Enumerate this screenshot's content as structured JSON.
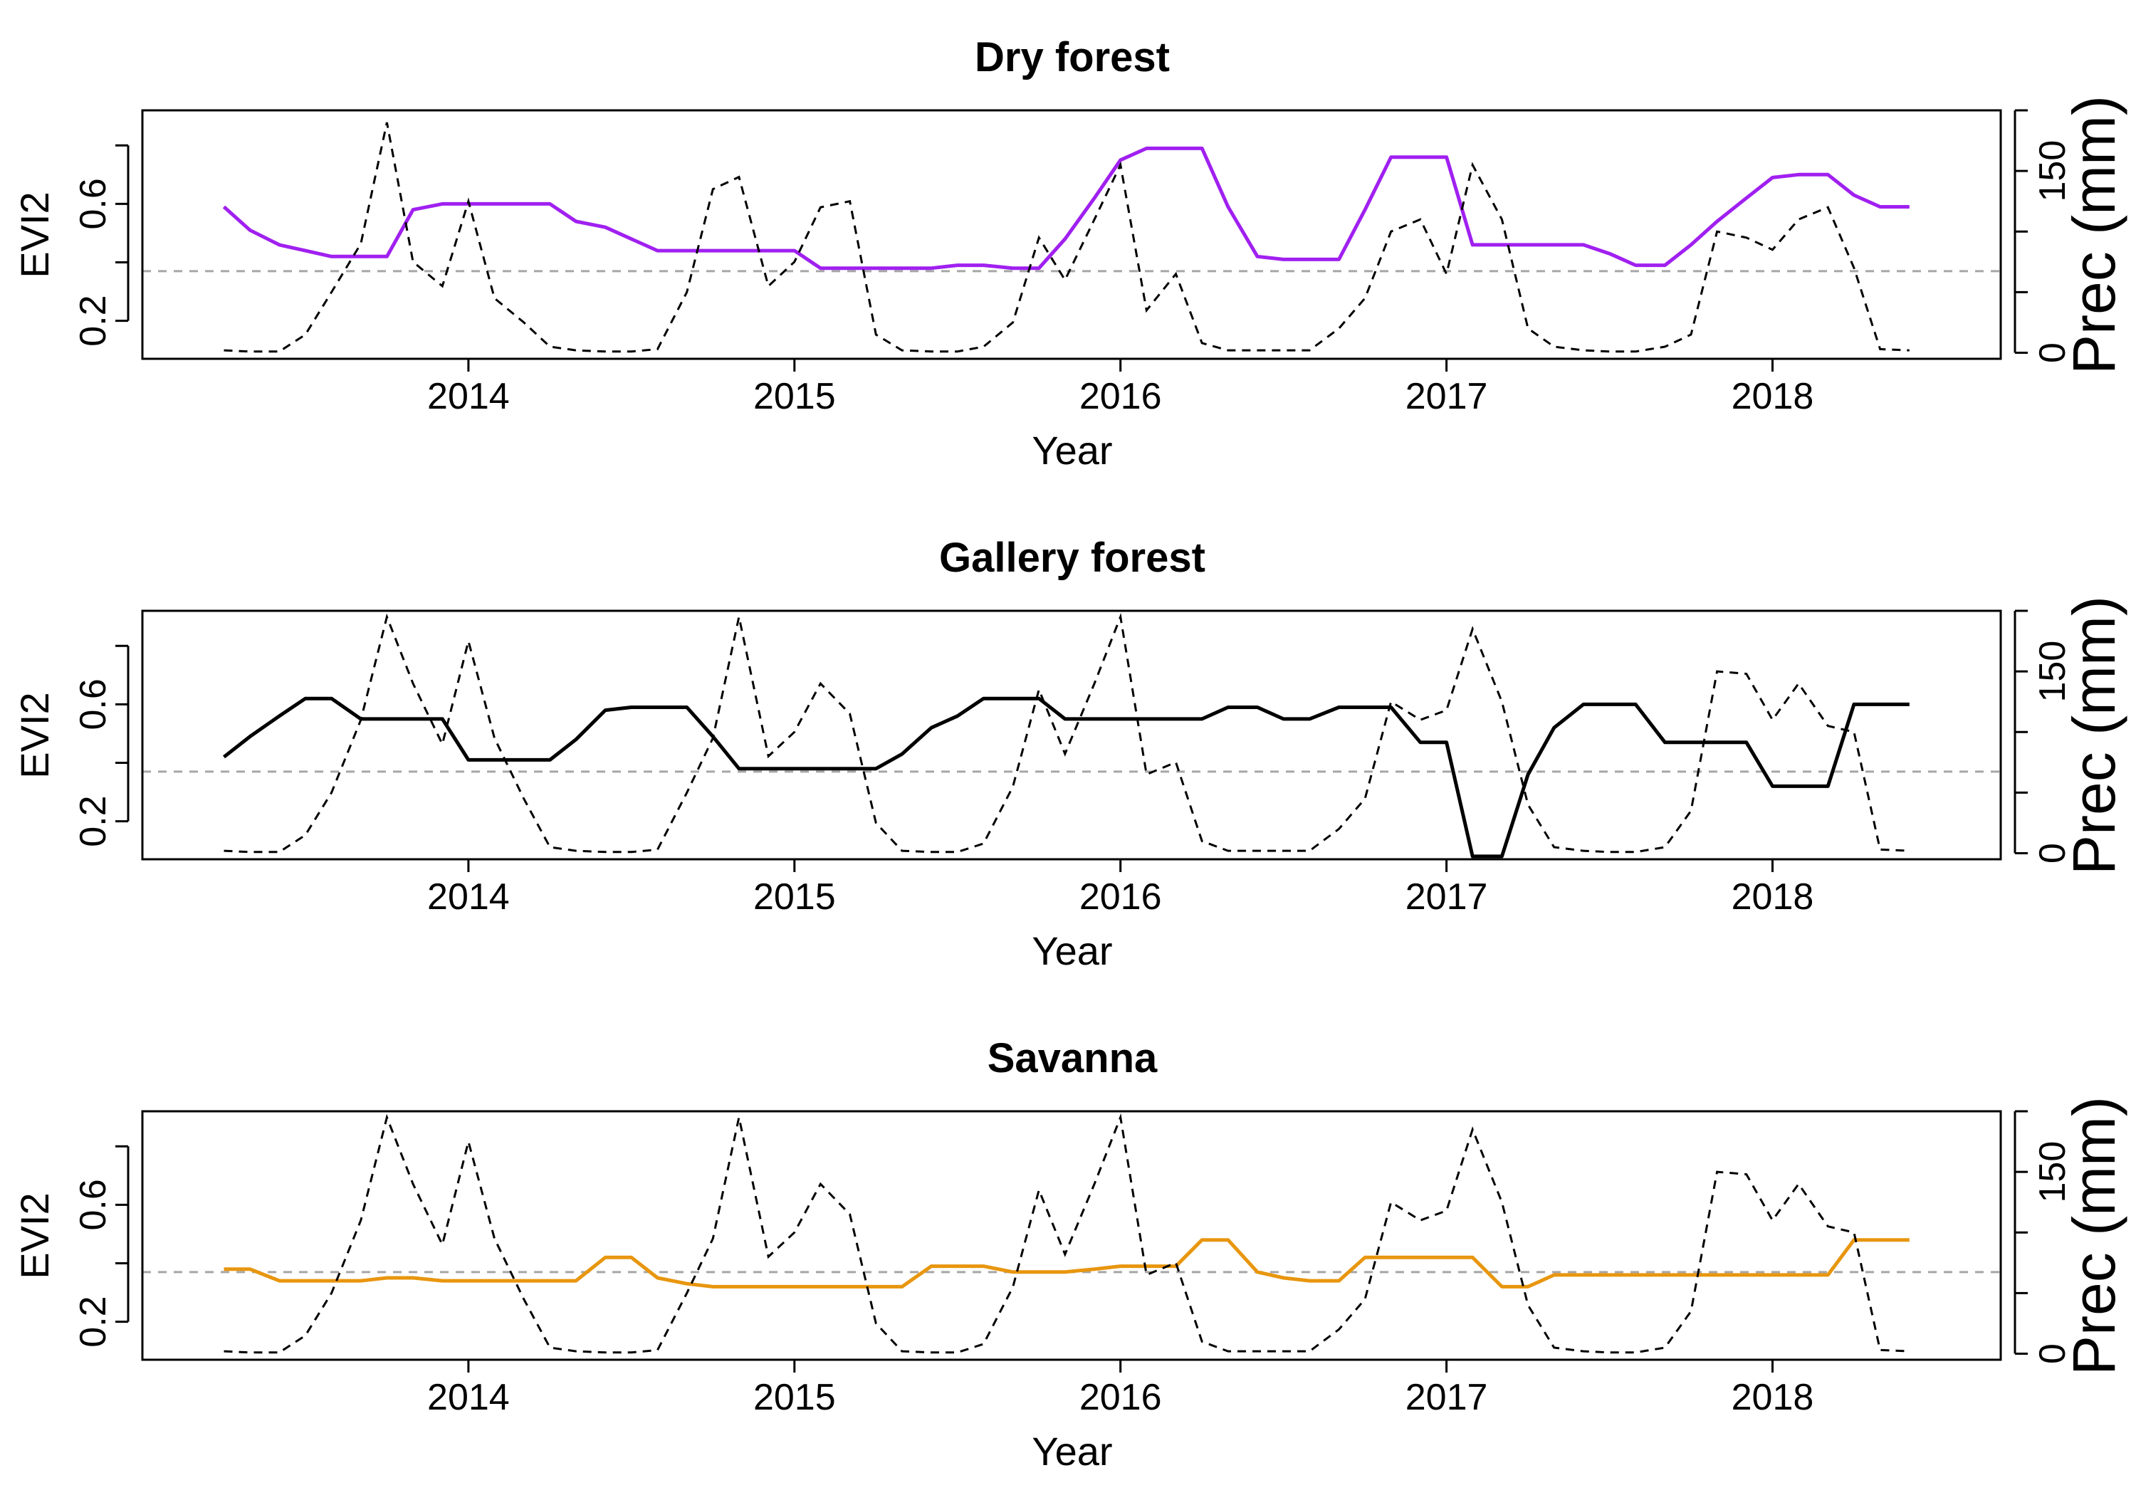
{
  "figure": {
    "background": "#ffffff"
  },
  "chart_data": [
    {
      "type": "line",
      "title": "Dry forest",
      "xlabel": "Year",
      "ylabel": "EVI2",
      "y2label": "Prec (mm)",
      "xlim": [
        2013.0,
        2018.7
      ],
      "ylim": [
        0.07,
        0.92
      ],
      "y2lim": [
        -5,
        200
      ],
      "xticks": [
        2014,
        2015,
        2016,
        2017,
        2018
      ],
      "yticks": [
        0.2,
        0.6
      ],
      "yticks_minor": [
        0.4,
        0.8
      ],
      "y2ticks": [
        0,
        150
      ],
      "y2ticks_minor": [
        50,
        100,
        200
      ],
      "reference_line": {
        "y": 0.37,
        "color": "#a6a6a6",
        "style": "dashed"
      },
      "grid": false,
      "series": [
        {
          "color": "#a020f0",
          "style": "solid",
          "axis": "left",
          "x": [
            2013.25,
            2013.33,
            2013.42,
            2013.5,
            2013.58,
            2013.67,
            2013.75,
            2013.83,
            2013.92,
            2014.0,
            2014.08,
            2014.17,
            2014.25,
            2014.33,
            2014.42,
            2014.5,
            2014.58,
            2014.67,
            2014.75,
            2014.83,
            2014.92,
            2015.0,
            2015.08,
            2015.17,
            2015.25,
            2015.33,
            2015.42,
            2015.5,
            2015.58,
            2015.67,
            2015.75,
            2015.83,
            2015.92,
            2016.0,
            2016.08,
            2016.17,
            2016.25,
            2016.33,
            2016.42,
            2016.5,
            2016.58,
            2016.67,
            2016.75,
            2016.83,
            2016.92,
            2017.0,
            2017.08,
            2017.17,
            2017.25,
            2017.33,
            2017.42,
            2017.5,
            2017.58,
            2017.67,
            2017.75,
            2017.83,
            2017.92,
            2018.0,
            2018.08,
            2018.17,
            2018.25,
            2018.33,
            2018.42
          ],
          "values": [
            0.59,
            0.51,
            0.46,
            0.44,
            0.42,
            0.42,
            0.42,
            0.58,
            0.6,
            0.6,
            0.6,
            0.6,
            0.6,
            0.54,
            0.52,
            0.48,
            0.44,
            0.44,
            0.44,
            0.44,
            0.44,
            0.44,
            0.38,
            0.38,
            0.38,
            0.38,
            0.38,
            0.39,
            0.39,
            0.38,
            0.38,
            0.48,
            0.62,
            0.75,
            0.79,
            0.79,
            0.79,
            0.59,
            0.42,
            0.41,
            0.41,
            0.41,
            0.58,
            0.76,
            0.76,
            0.76,
            0.46,
            0.46,
            0.46,
            0.46,
            0.46,
            0.43,
            0.39,
            0.39,
            0.46,
            0.54,
            0.62,
            0.69,
            0.7,
            0.7,
            0.63,
            0.59,
            0.59
          ]
        },
        {
          "color": "#000000",
          "style": "dashed",
          "axis": "right",
          "x": [
            2013.25,
            2013.33,
            2013.42,
            2013.5,
            2013.58,
            2013.67,
            2013.75,
            2013.83,
            2013.92,
            2014.0,
            2014.08,
            2014.17,
            2014.25,
            2014.33,
            2014.42,
            2014.5,
            2014.58,
            2014.67,
            2014.75,
            2014.83,
            2014.92,
            2015.0,
            2015.08,
            2015.17,
            2015.25,
            2015.33,
            2015.42,
            2015.5,
            2015.58,
            2015.67,
            2015.75,
            2015.83,
            2015.92,
            2016.0,
            2016.08,
            2016.17,
            2016.25,
            2016.33,
            2016.42,
            2016.5,
            2016.58,
            2016.67,
            2016.75,
            2016.83,
            2016.92,
            2017.0,
            2017.08,
            2017.17,
            2017.25,
            2017.33,
            2017.42,
            2017.5,
            2017.58,
            2017.67,
            2017.75,
            2017.83,
            2017.92,
            2018.0,
            2018.08,
            2018.17,
            2018.25,
            2018.33,
            2018.42
          ],
          "values": [
            2,
            1,
            1,
            15,
            50,
            90,
            190,
            75,
            55,
            125,
            45,
            25,
            5,
            2,
            1,
            1,
            3,
            50,
            135,
            145,
            55,
            75,
            120,
            125,
            15,
            2,
            1,
            1,
            5,
            25,
            95,
            60,
            110,
            155,
            35,
            65,
            8,
            2,
            2,
            2,
            2,
            20,
            45,
            100,
            110,
            65,
            155,
            110,
            20,
            5,
            2,
            1,
            1,
            5,
            15,
            100,
            95,
            85,
            110,
            120,
            70,
            3,
            2
          ]
        }
      ]
    },
    {
      "type": "line",
      "title": "Gallery forest",
      "xlabel": "Year",
      "ylabel": "EVI2",
      "y2label": "Prec (mm)",
      "xlim": [
        2013.0,
        2018.7
      ],
      "ylim": [
        0.07,
        0.92
      ],
      "y2lim": [
        -5,
        200
      ],
      "xticks": [
        2014,
        2015,
        2016,
        2017,
        2018
      ],
      "yticks": [
        0.2,
        0.6
      ],
      "yticks_minor": [
        0.4,
        0.8
      ],
      "y2ticks": [
        0,
        150
      ],
      "y2ticks_minor": [
        50,
        100,
        200
      ],
      "reference_line": {
        "y": 0.37,
        "color": "#a6a6a6",
        "style": "dashed"
      },
      "grid": false,
      "series": [
        {
          "color": "#000000",
          "style": "solid",
          "axis": "left",
          "x": [
            2013.25,
            2013.33,
            2013.42,
            2013.5,
            2013.58,
            2013.67,
            2013.75,
            2013.83,
            2013.92,
            2014.0,
            2014.08,
            2014.17,
            2014.25,
            2014.33,
            2014.42,
            2014.5,
            2014.58,
            2014.67,
            2014.75,
            2014.83,
            2014.92,
            2015.0,
            2015.08,
            2015.17,
            2015.25,
            2015.33,
            2015.42,
            2015.5,
            2015.58,
            2015.67,
            2015.75,
            2015.83,
            2015.92,
            2016.0,
            2016.08,
            2016.17,
            2016.25,
            2016.33,
            2016.42,
            2016.5,
            2016.58,
            2016.67,
            2016.75,
            2016.83,
            2016.92,
            2017.0,
            2017.08,
            2017.17,
            2017.25,
            2017.33,
            2017.42,
            2017.5,
            2017.58,
            2017.67,
            2017.75,
            2017.83,
            2017.92,
            2018.0,
            2018.08,
            2018.17,
            2018.25,
            2018.33,
            2018.42
          ],
          "values": [
            0.42,
            0.49,
            0.56,
            0.62,
            0.62,
            0.55,
            0.55,
            0.55,
            0.55,
            0.41,
            0.41,
            0.41,
            0.41,
            0.48,
            0.58,
            0.59,
            0.59,
            0.59,
            0.49,
            0.38,
            0.38,
            0.38,
            0.38,
            0.38,
            0.38,
            0.43,
            0.52,
            0.56,
            0.62,
            0.62,
            0.62,
            0.55,
            0.55,
            0.55,
            0.55,
            0.55,
            0.55,
            0.59,
            0.59,
            0.55,
            0.55,
            0.59,
            0.59,
            0.59,
            0.47,
            0.47,
            0.08,
            0.08,
            0.36,
            0.52,
            0.6,
            0.6,
            0.6,
            0.47,
            0.47,
            0.47,
            0.47,
            0.32,
            0.32,
            0.32,
            0.6,
            0.6,
            0.6
          ]
        },
        {
          "color": "#000000",
          "style": "dashed",
          "axis": "right",
          "x": [
            2013.25,
            2013.33,
            2013.42,
            2013.5,
            2013.58,
            2013.67,
            2013.75,
            2013.83,
            2013.92,
            2014.0,
            2014.08,
            2014.17,
            2014.25,
            2014.33,
            2014.42,
            2014.5,
            2014.58,
            2014.67,
            2014.75,
            2014.83,
            2014.92,
            2015.0,
            2015.08,
            2015.17,
            2015.25,
            2015.33,
            2015.42,
            2015.5,
            2015.58,
            2015.67,
            2015.75,
            2015.83,
            2015.92,
            2016.0,
            2016.08,
            2016.17,
            2016.25,
            2016.33,
            2016.42,
            2016.5,
            2016.58,
            2016.67,
            2016.75,
            2016.83,
            2016.92,
            2017.0,
            2017.08,
            2017.17,
            2017.25,
            2017.33,
            2017.42,
            2017.5,
            2017.58,
            2017.67,
            2017.75,
            2017.83,
            2017.92,
            2018.0,
            2018.08,
            2018.17,
            2018.25,
            2018.33,
            2018.42
          ],
          "values": [
            2,
            1,
            1,
            15,
            50,
            110,
            195,
            140,
            90,
            175,
            95,
            45,
            5,
            2,
            1,
            1,
            3,
            50,
            95,
            195,
            80,
            100,
            140,
            115,
            25,
            2,
            1,
            1,
            8,
            55,
            135,
            82,
            140,
            195,
            65,
            75,
            10,
            2,
            2,
            2,
            2,
            20,
            45,
            125,
            110,
            118,
            185,
            125,
            40,
            5,
            2,
            1,
            1,
            5,
            35,
            150,
            148,
            110,
            140,
            105,
            100,
            3,
            2
          ]
        }
      ]
    },
    {
      "type": "line",
      "title": "Savanna",
      "xlabel": "Year",
      "ylabel": "EVI2",
      "y2label": "Prec (mm)",
      "xlim": [
        2013.0,
        2018.7
      ],
      "ylim": [
        0.07,
        0.92
      ],
      "y2lim": [
        -5,
        200
      ],
      "xticks": [
        2014,
        2015,
        2016,
        2017,
        2018
      ],
      "yticks": [
        0.2,
        0.6
      ],
      "yticks_minor": [
        0.4,
        0.8
      ],
      "y2ticks": [
        0,
        150
      ],
      "y2ticks_minor": [
        50,
        100,
        200
      ],
      "reference_line": {
        "y": 0.37,
        "color": "#a6a6a6",
        "style": "dashed"
      },
      "grid": false,
      "series": [
        {
          "color": "#e8960f",
          "style": "solid",
          "axis": "left",
          "x": [
            2013.25,
            2013.33,
            2013.42,
            2013.5,
            2013.58,
            2013.67,
            2013.75,
            2013.83,
            2013.92,
            2014.0,
            2014.08,
            2014.17,
            2014.25,
            2014.33,
            2014.42,
            2014.5,
            2014.58,
            2014.67,
            2014.75,
            2014.83,
            2014.92,
            2015.0,
            2015.08,
            2015.17,
            2015.25,
            2015.33,
            2015.42,
            2015.5,
            2015.58,
            2015.67,
            2015.75,
            2015.83,
            2015.92,
            2016.0,
            2016.08,
            2016.17,
            2016.25,
            2016.33,
            2016.42,
            2016.5,
            2016.58,
            2016.67,
            2016.75,
            2016.83,
            2016.92,
            2017.0,
            2017.08,
            2017.17,
            2017.25,
            2017.33,
            2017.42,
            2017.5,
            2017.58,
            2017.67,
            2017.75,
            2017.83,
            2017.92,
            2018.0,
            2018.08,
            2018.17,
            2018.25,
            2018.33,
            2018.42
          ],
          "values": [
            0.38,
            0.38,
            0.34,
            0.34,
            0.34,
            0.34,
            0.35,
            0.35,
            0.34,
            0.34,
            0.34,
            0.34,
            0.34,
            0.34,
            0.42,
            0.42,
            0.35,
            0.33,
            0.32,
            0.32,
            0.32,
            0.32,
            0.32,
            0.32,
            0.32,
            0.32,
            0.39,
            0.39,
            0.39,
            0.37,
            0.37,
            0.37,
            0.38,
            0.39,
            0.39,
            0.39,
            0.48,
            0.48,
            0.37,
            0.35,
            0.34,
            0.34,
            0.42,
            0.42,
            0.42,
            0.42,
            0.42,
            0.32,
            0.32,
            0.36,
            0.36,
            0.36,
            0.36,
            0.36,
            0.36,
            0.36,
            0.36,
            0.36,
            0.36,
            0.36,
            0.48,
            0.48,
            0.48
          ]
        },
        {
          "color": "#000000",
          "style": "dashed",
          "axis": "right",
          "x": [
            2013.25,
            2013.33,
            2013.42,
            2013.5,
            2013.58,
            2013.67,
            2013.75,
            2013.83,
            2013.92,
            2014.0,
            2014.08,
            2014.17,
            2014.25,
            2014.33,
            2014.42,
            2014.5,
            2014.58,
            2014.67,
            2014.75,
            2014.83,
            2014.92,
            2015.0,
            2015.08,
            2015.17,
            2015.25,
            2015.33,
            2015.42,
            2015.5,
            2015.58,
            2015.67,
            2015.75,
            2015.83,
            2015.92,
            2016.0,
            2016.08,
            2016.17,
            2016.25,
            2016.33,
            2016.42,
            2016.5,
            2016.58,
            2016.67,
            2016.75,
            2016.83,
            2016.92,
            2017.0,
            2017.08,
            2017.17,
            2017.25,
            2017.33,
            2017.42,
            2017.5,
            2017.58,
            2017.67,
            2017.75,
            2017.83,
            2017.92,
            2018.0,
            2018.08,
            2018.17,
            2018.25,
            2018.33,
            2018.42
          ],
          "values": [
            2,
            1,
            1,
            15,
            50,
            110,
            195,
            140,
            90,
            175,
            95,
            45,
            5,
            2,
            1,
            1,
            3,
            50,
            95,
            195,
            80,
            100,
            140,
            115,
            25,
            2,
            1,
            1,
            8,
            55,
            135,
            82,
            140,
            195,
            65,
            75,
            10,
            2,
            2,
            2,
            2,
            20,
            45,
            125,
            110,
            118,
            185,
            125,
            40,
            5,
            2,
            1,
            1,
            5,
            35,
            150,
            148,
            110,
            140,
            105,
            100,
            3,
            2
          ]
        }
      ]
    }
  ]
}
